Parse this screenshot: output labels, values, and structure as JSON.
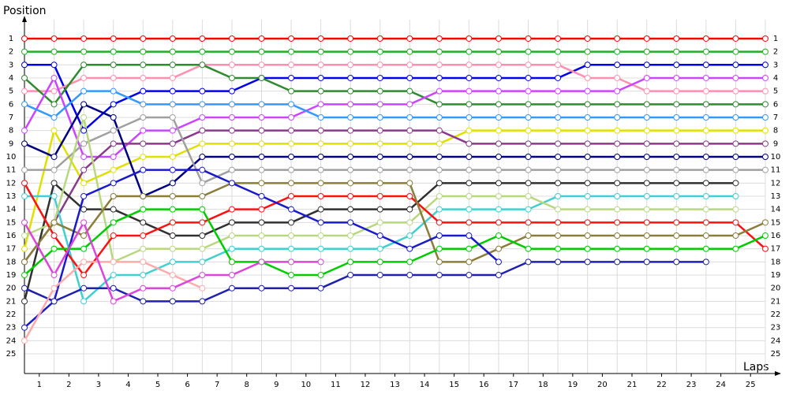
{
  "chart_data": {
    "type": "line",
    "ylabel": "Position",
    "xlabel": "Laps",
    "x": [
      0,
      1,
      2,
      3,
      4,
      5,
      6,
      7,
      8,
      9,
      10,
      11,
      12,
      13,
      14,
      15,
      16,
      17,
      18,
      19,
      20,
      21,
      22,
      23,
      24,
      25
    ],
    "xlim": [
      0,
      25
    ],
    "ylim": [
      0,
      26.5
    ],
    "y_reversed": true,
    "grid": true,
    "xticks": [
      {
        "value": 0.5,
        "label": "1"
      },
      {
        "value": 1.5,
        "label": "2"
      },
      {
        "value": 2.5,
        "label": "3"
      },
      {
        "value": 3.5,
        "label": "4"
      },
      {
        "value": 4.5,
        "label": "5"
      },
      {
        "value": 5.5,
        "label": "6"
      },
      {
        "value": 6.5,
        "label": "7"
      },
      {
        "value": 7.5,
        "label": "8"
      },
      {
        "value": 8.5,
        "label": "9"
      },
      {
        "value": 9.5,
        "label": "10"
      },
      {
        "value": 10.5,
        "label": "11"
      },
      {
        "value": 11.5,
        "label": "12"
      },
      {
        "value": 12.5,
        "label": "13"
      },
      {
        "value": 13.5,
        "label": "14"
      },
      {
        "value": 14.5,
        "label": "15"
      },
      {
        "value": 15.5,
        "label": "16"
      },
      {
        "value": 16.5,
        "label": "17"
      },
      {
        "value": 17.5,
        "label": "18"
      },
      {
        "value": 18.5,
        "label": "19"
      },
      {
        "value": 19.5,
        "label": "20"
      },
      {
        "value": 20.5,
        "label": "21"
      },
      {
        "value": 21.5,
        "label": "22"
      },
      {
        "value": 22.5,
        "label": "23"
      },
      {
        "value": 23.5,
        "label": "24"
      },
      {
        "value": 24.5,
        "label": "25"
      }
    ],
    "yticks": [
      1,
      2,
      3,
      4,
      5,
      6,
      7,
      8,
      9,
      10,
      11,
      12,
      13,
      14,
      15,
      16,
      17,
      18,
      19,
      20,
      21,
      22,
      23,
      24,
      25
    ],
    "series": [
      {
        "color": "#ff0000",
        "values": [
          1,
          1,
          1,
          1,
          1,
          1,
          1,
          1,
          1,
          1,
          1,
          1,
          1,
          1,
          1,
          1,
          1,
          1,
          1,
          1,
          1,
          1,
          1,
          1,
          1,
          1
        ]
      },
      {
        "color": "#20b020",
        "values": [
          2,
          2,
          2,
          2,
          2,
          2,
          2,
          2,
          2,
          2,
          2,
          2,
          2,
          2,
          2,
          2,
          2,
          2,
          2,
          2,
          2,
          2,
          2,
          2,
          2,
          2
        ]
      },
      {
        "color": "#0000ee",
        "values": [
          3,
          3,
          8,
          6,
          5,
          5,
          5,
          5,
          4,
          4,
          4,
          4,
          4,
          4,
          4,
          4,
          4,
          4,
          4,
          3,
          3,
          3,
          3,
          3,
          3,
          3
        ]
      },
      {
        "color": "#ff8fb0",
        "values": [
          5,
          5,
          4,
          4,
          4,
          4,
          3,
          3,
          3,
          3,
          3,
          3,
          3,
          3,
          3,
          3,
          3,
          3,
          3,
          4,
          4,
          5,
          5,
          5,
          5,
          5
        ]
      },
      {
        "color": "#2e8b2e",
        "values": [
          4,
          6,
          3,
          3,
          3,
          3,
          3,
          4,
          4,
          5,
          5,
          5,
          5,
          5,
          6,
          6,
          6,
          6,
          6,
          6,
          6,
          6,
          6,
          6,
          6,
          6
        ]
      },
      {
        "color": "#cc44ff",
        "values": [
          8,
          4,
          10,
          10,
          8,
          8,
          7,
          7,
          7,
          7,
          6,
          6,
          6,
          6,
          5,
          5,
          5,
          5,
          5,
          5,
          5,
          4,
          4,
          4,
          4,
          4
        ]
      },
      {
        "color": "#3399ff",
        "values": [
          6,
          7,
          5,
          5,
          6,
          6,
          6,
          6,
          6,
          6,
          7,
          7,
          7,
          7,
          7,
          7,
          7,
          7,
          7,
          7,
          7,
          7,
          7,
          7,
          7,
          7
        ]
      },
      {
        "color": "#e0e000",
        "values": [
          17,
          8,
          12,
          11,
          10,
          10,
          9,
          9,
          9,
          9,
          9,
          9,
          9,
          9,
          9,
          8,
          8,
          8,
          8,
          8,
          8,
          8,
          8,
          8,
          8,
          8
        ]
      },
      {
        "color": "#8b3a8b",
        "values": [
          18,
          15,
          11,
          9,
          9,
          9,
          8,
          8,
          8,
          8,
          8,
          8,
          8,
          8,
          8,
          9,
          9,
          9,
          9,
          9,
          9,
          9,
          9,
          9,
          9,
          9
        ]
      },
      {
        "color": "#000080",
        "values": [
          9,
          10,
          6,
          7,
          13,
          12,
          10,
          10,
          10,
          10,
          10,
          10,
          10,
          10,
          10,
          10,
          10,
          10,
          10,
          10,
          10,
          10,
          10,
          10,
          10,
          10
        ]
      },
      {
        "color": "#a0a0a0",
        "values": [
          11,
          11,
          9,
          8,
          7,
          7,
          12,
          11,
          11,
          11,
          11,
          11,
          11,
          11,
          11,
          11,
          11,
          11,
          11,
          11,
          11,
          11,
          11,
          11,
          11,
          11
        ]
      },
      {
        "color": "#303030",
        "values": [
          21,
          12,
          14,
          14,
          15,
          16,
          16,
          15,
          15,
          15,
          14,
          14,
          14,
          14,
          12,
          12,
          12,
          12,
          12,
          12,
          12,
          12,
          12,
          12,
          12,
          null
        ]
      },
      {
        "color": "#40d0d0",
        "values": [
          13,
          13,
          21,
          19,
          19,
          18,
          18,
          17,
          17,
          17,
          17,
          17,
          17,
          16,
          14,
          14,
          14,
          14,
          13,
          13,
          13,
          13,
          13,
          13,
          13,
          null
        ]
      },
      {
        "color": "#b8d880",
        "values": [
          16,
          15,
          7,
          18,
          17,
          17,
          17,
          16,
          16,
          16,
          16,
          16,
          15,
          15,
          13,
          13,
          13,
          13,
          14,
          14,
          14,
          14,
          14,
          14,
          14,
          null
        ]
      },
      {
        "color": "#ff1010",
        "values": [
          12,
          16,
          19,
          16,
          16,
          15,
          15,
          14,
          14,
          13,
          13,
          13,
          13,
          13,
          15,
          15,
          15,
          15,
          15,
          15,
          15,
          15,
          15,
          15,
          15,
          17
        ]
      },
      {
        "color": "#8b7d3a",
        "values": [
          18,
          15,
          16,
          13,
          13,
          13,
          13,
          12,
          12,
          12,
          12,
          12,
          12,
          12,
          18,
          18,
          17,
          16,
          16,
          16,
          16,
          16,
          16,
          16,
          16,
          15
        ]
      },
      {
        "color": "#00cc00",
        "values": [
          19,
          17,
          17,
          15,
          14,
          14,
          14,
          18,
          18,
          19,
          19,
          18,
          18,
          18,
          17,
          17,
          16,
          17,
          17,
          17,
          17,
          17,
          17,
          17,
          17,
          16
        ]
      },
      {
        "color": "#1a1acd",
        "values": [
          23,
          21,
          13,
          12,
          11,
          11,
          11,
          12,
          13,
          14,
          15,
          15,
          16,
          17,
          16,
          16,
          18,
          null,
          null,
          null,
          null,
          null,
          null,
          null,
          null,
          null
        ]
      },
      {
        "color": "#2020b0",
        "values": [
          20,
          21,
          20,
          20,
          21,
          21,
          21,
          20,
          20,
          20,
          20,
          19,
          19,
          19,
          19,
          19,
          19,
          18,
          18,
          18,
          18,
          18,
          18,
          18,
          null,
          null
        ]
      },
      {
        "color": "#ffaaaa",
        "values": [
          24,
          20,
          18,
          18,
          18,
          19,
          20,
          null,
          null,
          null,
          null,
          null,
          null,
          null,
          null,
          null,
          null,
          null,
          null,
          null,
          null,
          null,
          null,
          null,
          null,
          null
        ]
      },
      {
        "color": "#dd44dd",
        "values": [
          15,
          19,
          15,
          21,
          20,
          20,
          19,
          19,
          18,
          18,
          18,
          null,
          null,
          null,
          null,
          null,
          null,
          null,
          null,
          null,
          null,
          null,
          null,
          null,
          null,
          null
        ]
      }
    ]
  }
}
